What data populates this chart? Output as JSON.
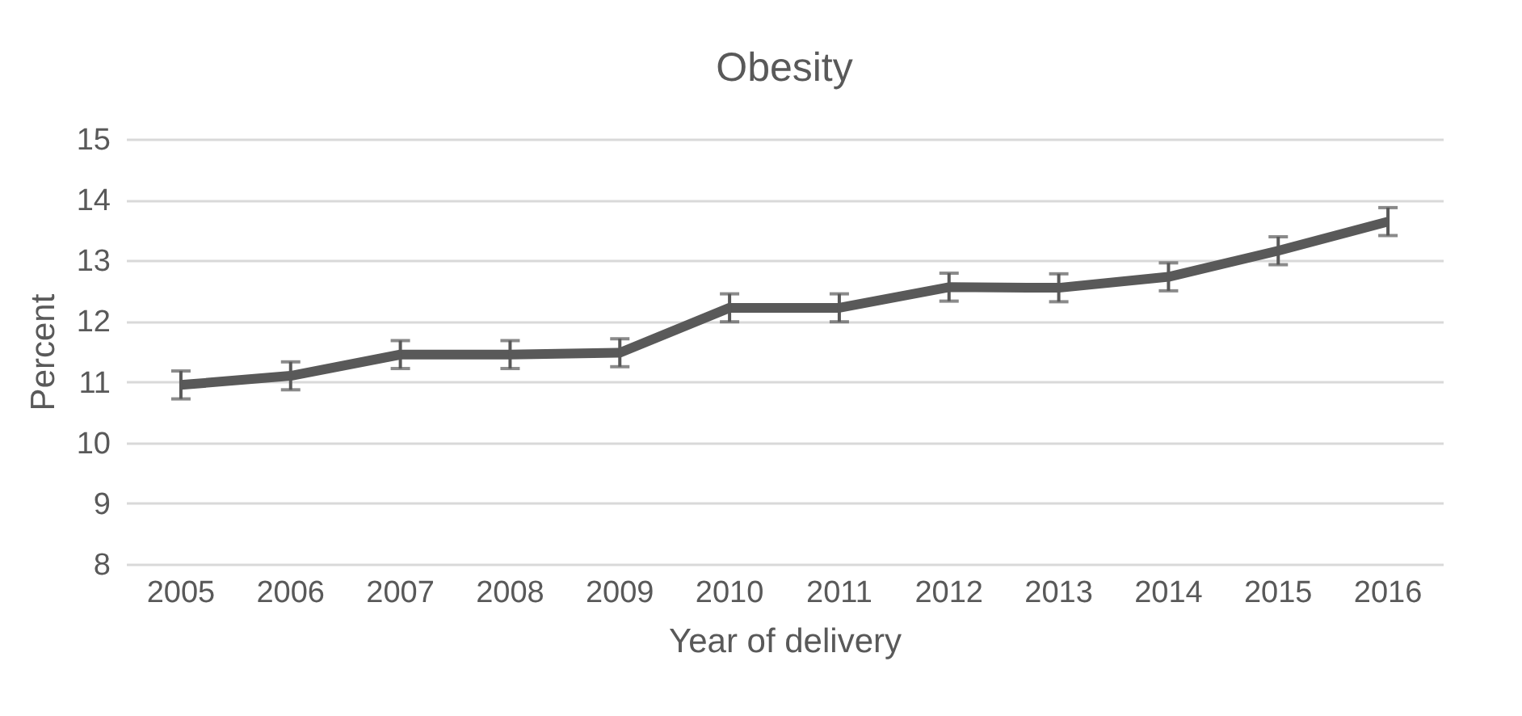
{
  "chart_data": {
    "type": "line",
    "title": "Obesity",
    "xlabel": "Year of delivery",
    "ylabel": "Percent",
    "categories": [
      "2005",
      "2006",
      "2007",
      "2008",
      "2009",
      "2010",
      "2011",
      "2012",
      "2013",
      "2014",
      "2015",
      "2016"
    ],
    "series": [
      {
        "color": "#595959",
        "values": [
          10.95,
          11.1,
          11.45,
          11.45,
          11.48,
          12.22,
          12.22,
          12.56,
          12.55,
          12.73,
          13.16,
          13.64
        ],
        "errors": [
          0.23,
          0.23,
          0.23,
          0.23,
          0.23,
          0.23,
          0.23,
          0.23,
          0.23,
          0.23,
          0.23,
          0.23
        ]
      }
    ],
    "ylim": [
      8,
      15
    ],
    "yticks": [
      8,
      9,
      10,
      11,
      12,
      13,
      14,
      15
    ],
    "grid": "y",
    "legend": false,
    "marker": "none",
    "line_style": "solid"
  }
}
